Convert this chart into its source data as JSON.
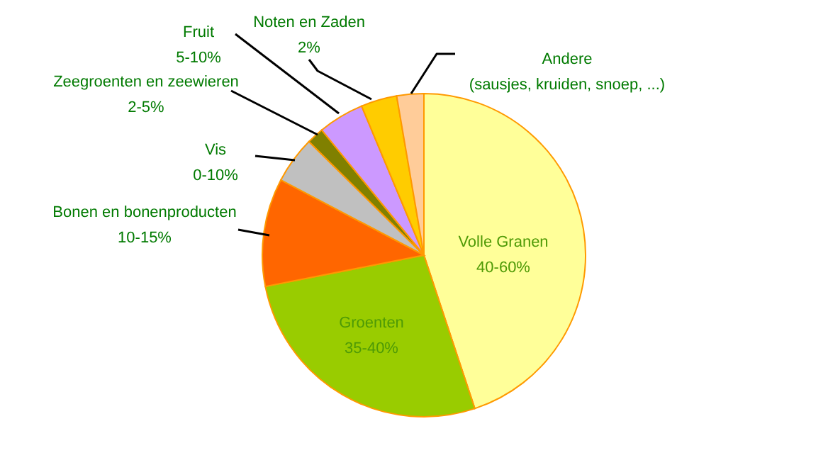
{
  "chart_data": {
    "type": "pie",
    "categories": [
      "Volle Granen\n40-60%",
      "Groenten\n35-40%",
      "Bonen en bonenproducten\n10-15%",
      "Vis\n0-10%",
      "Zeegroenten en zeewieren\n2-5%",
      "Fruit\n5-10%",
      "Noten en Zaden\n2%",
      "Andere\n(sausjes, kruiden, snoep, ...)"
    ],
    "values": [
      44.9,
      27.0,
      10.8,
      4.7,
      1.7,
      4.6,
      3.6,
      2.7
    ],
    "colors": [
      "#ffff99",
      "#99cc00",
      "#ff6600",
      "#c0c0c0",
      "#808000",
      "#cc99ff",
      "#ffcc00",
      "#ffcc99"
    ]
  }
}
